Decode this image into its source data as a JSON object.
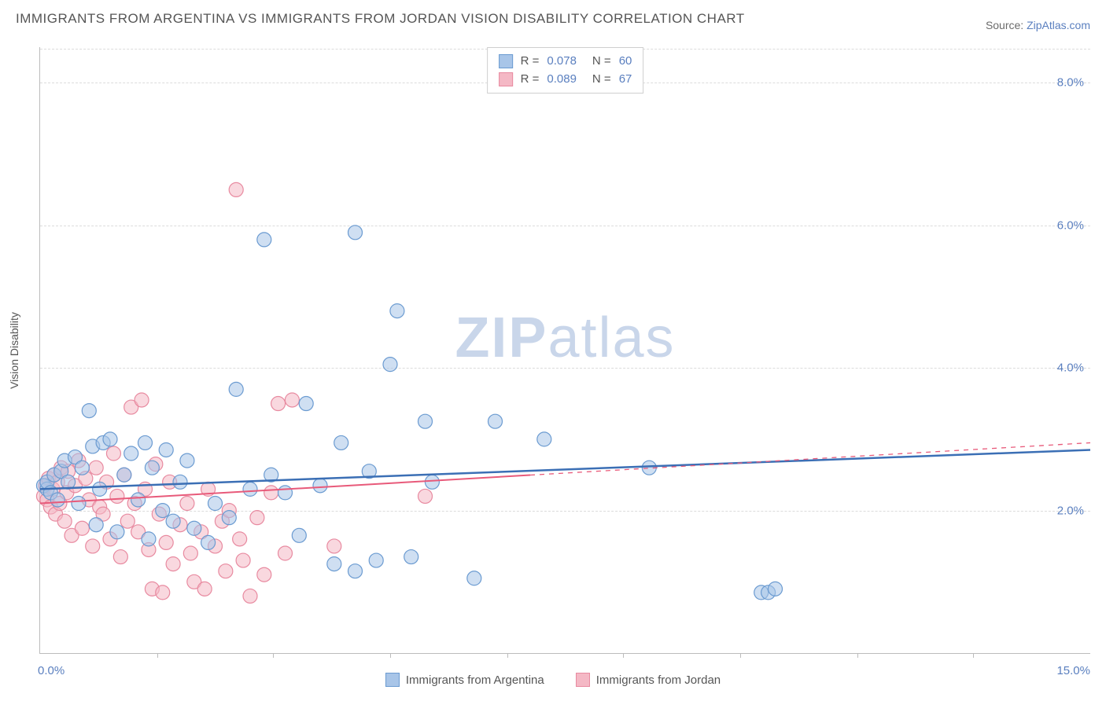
{
  "title": "IMMIGRANTS FROM ARGENTINA VS IMMIGRANTS FROM JORDAN VISION DISABILITY CORRELATION CHART",
  "source_prefix": "Source: ",
  "source_link": "ZipAtlas.com",
  "y_axis_title": "Vision Disability",
  "watermark_bold": "ZIP",
  "watermark_light": "atlas",
  "chart": {
    "type": "scatter",
    "xlim": [
      0,
      15
    ],
    "ylim": [
      0,
      8.5
    ],
    "x_ticks": [
      0,
      15
    ],
    "x_tick_labels": [
      "0.0%",
      "15.0%"
    ],
    "x_minor_ticks": [
      1.67,
      3.33,
      5,
      6.67,
      8.33,
      10,
      11.67,
      13.33
    ],
    "y_gridlines": [
      2,
      4,
      6,
      8
    ],
    "y_tick_labels": [
      "2.0%",
      "4.0%",
      "6.0%",
      "8.0%"
    ],
    "background_color": "#ffffff",
    "grid_color": "#dcdcdc",
    "series": [
      {
        "name": "Immigrants from Argentina",
        "color_fill": "#a8c5e8",
        "color_stroke": "#6b9bd1",
        "marker_radius": 9,
        "fill_opacity": 0.55,
        "R": "0.078",
        "N": "60",
        "trend": {
          "x1": 0,
          "y1": 2.3,
          "x2": 15,
          "y2": 2.85,
          "color": "#3b6fb5",
          "width": 2.5,
          "dash_after_x": null
        },
        "points": [
          [
            0.05,
            2.35
          ],
          [
            0.1,
            2.3
          ],
          [
            0.1,
            2.4
          ],
          [
            0.15,
            2.25
          ],
          [
            0.2,
            2.5
          ],
          [
            0.25,
            2.15
          ],
          [
            0.3,
            2.55
          ],
          [
            0.35,
            2.7
          ],
          [
            0.4,
            2.4
          ],
          [
            0.5,
            2.75
          ],
          [
            0.55,
            2.1
          ],
          [
            0.6,
            2.6
          ],
          [
            0.7,
            3.4
          ],
          [
            0.75,
            2.9
          ],
          [
            0.8,
            1.8
          ],
          [
            0.85,
            2.3
          ],
          [
            0.9,
            2.95
          ],
          [
            1.0,
            3.0
          ],
          [
            1.1,
            1.7
          ],
          [
            1.2,
            2.5
          ],
          [
            1.3,
            2.8
          ],
          [
            1.4,
            2.15
          ],
          [
            1.5,
            2.95
          ],
          [
            1.55,
            1.6
          ],
          [
            1.6,
            2.6
          ],
          [
            1.75,
            2.0
          ],
          [
            1.8,
            2.85
          ],
          [
            1.9,
            1.85
          ],
          [
            2.0,
            2.4
          ],
          [
            2.1,
            2.7
          ],
          [
            2.2,
            1.75
          ],
          [
            2.4,
            1.55
          ],
          [
            2.5,
            2.1
          ],
          [
            2.7,
            1.9
          ],
          [
            2.8,
            3.7
          ],
          [
            3.0,
            2.3
          ],
          [
            3.2,
            5.8
          ],
          [
            3.3,
            2.5
          ],
          [
            3.5,
            2.25
          ],
          [
            3.7,
            1.65
          ],
          [
            3.8,
            3.5
          ],
          [
            4.0,
            2.35
          ],
          [
            4.2,
            1.25
          ],
          [
            4.3,
            2.95
          ],
          [
            4.5,
            1.15
          ],
          [
            4.5,
            5.9
          ],
          [
            4.7,
            2.55
          ],
          [
            4.8,
            1.3
          ],
          [
            5.0,
            4.05
          ],
          [
            5.1,
            4.8
          ],
          [
            5.3,
            1.35
          ],
          [
            5.5,
            3.25
          ],
          [
            5.6,
            2.4
          ],
          [
            6.2,
            1.05
          ],
          [
            6.5,
            3.25
          ],
          [
            7.2,
            3.0
          ],
          [
            8.7,
            2.6
          ],
          [
            10.3,
            0.85
          ],
          [
            10.4,
            0.85
          ],
          [
            10.5,
            0.9
          ]
        ]
      },
      {
        "name": "Immigrants from Jordan",
        "color_fill": "#f4b8c5",
        "color_stroke": "#e88aa0",
        "marker_radius": 9,
        "fill_opacity": 0.55,
        "R": "0.089",
        "N": "67",
        "trend": {
          "x1": 0,
          "y1": 2.1,
          "x2": 15,
          "y2": 2.95,
          "color": "#e85a7a",
          "width": 2,
          "dash_after_x": 7.0
        },
        "points": [
          [
            0.05,
            2.2
          ],
          [
            0.08,
            2.35
          ],
          [
            0.1,
            2.15
          ],
          [
            0.12,
            2.45
          ],
          [
            0.15,
            2.05
          ],
          [
            0.18,
            2.3
          ],
          [
            0.2,
            2.5
          ],
          [
            0.22,
            1.95
          ],
          [
            0.25,
            2.4
          ],
          [
            0.28,
            2.1
          ],
          [
            0.3,
            2.6
          ],
          [
            0.35,
            1.85
          ],
          [
            0.38,
            2.25
          ],
          [
            0.4,
            2.55
          ],
          [
            0.45,
            1.65
          ],
          [
            0.5,
            2.35
          ],
          [
            0.55,
            2.7
          ],
          [
            0.6,
            1.75
          ],
          [
            0.65,
            2.45
          ],
          [
            0.7,
            2.15
          ],
          [
            0.75,
            1.5
          ],
          [
            0.8,
            2.6
          ],
          [
            0.85,
            2.05
          ],
          [
            0.9,
            1.95
          ],
          [
            0.95,
            2.4
          ],
          [
            1.0,
            1.6
          ],
          [
            1.05,
            2.8
          ],
          [
            1.1,
            2.2
          ],
          [
            1.15,
            1.35
          ],
          [
            1.2,
            2.5
          ],
          [
            1.25,
            1.85
          ],
          [
            1.3,
            3.45
          ],
          [
            1.35,
            2.1
          ],
          [
            1.4,
            1.7
          ],
          [
            1.45,
            3.55
          ],
          [
            1.5,
            2.3
          ],
          [
            1.55,
            1.45
          ],
          [
            1.6,
            0.9
          ],
          [
            1.65,
            2.65
          ],
          [
            1.7,
            1.95
          ],
          [
            1.75,
            0.85
          ],
          [
            1.8,
            1.55
          ],
          [
            1.85,
            2.4
          ],
          [
            1.9,
            1.25
          ],
          [
            2.0,
            1.8
          ],
          [
            2.1,
            2.1
          ],
          [
            2.15,
            1.4
          ],
          [
            2.2,
            1.0
          ],
          [
            2.3,
            1.7
          ],
          [
            2.35,
            0.9
          ],
          [
            2.4,
            2.3
          ],
          [
            2.5,
            1.5
          ],
          [
            2.6,
            1.85
          ],
          [
            2.65,
            1.15
          ],
          [
            2.7,
            2.0
          ],
          [
            2.8,
            6.5
          ],
          [
            2.85,
            1.6
          ],
          [
            2.9,
            1.3
          ],
          [
            3.0,
            0.8
          ],
          [
            3.1,
            1.9
          ],
          [
            3.2,
            1.1
          ],
          [
            3.3,
            2.25
          ],
          [
            3.4,
            3.5
          ],
          [
            3.5,
            1.4
          ],
          [
            3.6,
            3.55
          ],
          [
            4.2,
            1.5
          ],
          [
            5.5,
            2.2
          ]
        ]
      }
    ]
  },
  "stat_legend": {
    "labels": {
      "R_label": "R =",
      "N_label": "N ="
    }
  },
  "bottom_legend_items": [
    {
      "label": "Immigrants from Argentina",
      "swatch_fill": "#a8c5e8",
      "swatch_stroke": "#6b9bd1"
    },
    {
      "label": "Immigrants from Jordan",
      "swatch_fill": "#f4b8c5",
      "swatch_stroke": "#e88aa0"
    }
  ]
}
